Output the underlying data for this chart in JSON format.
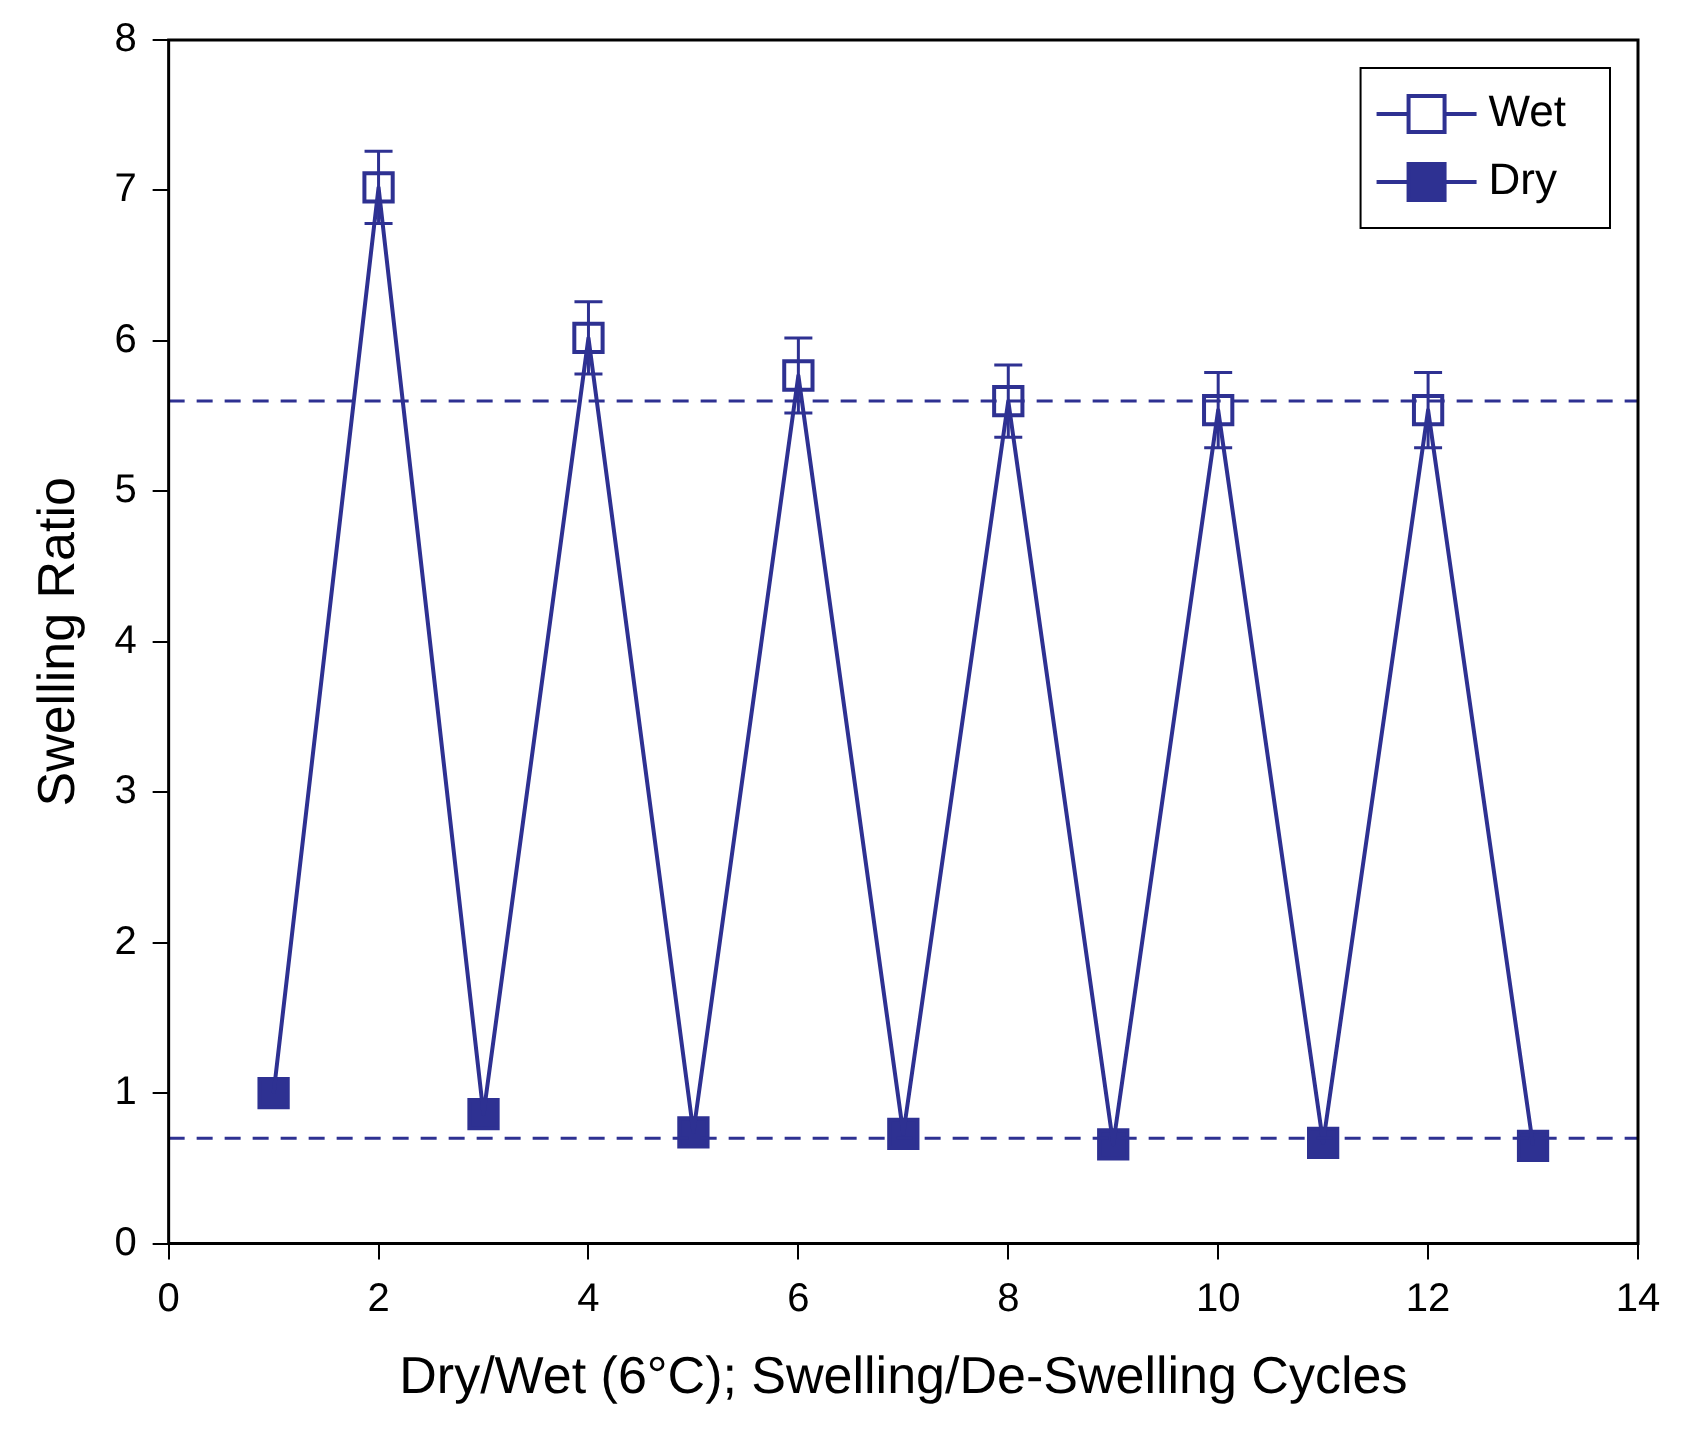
{
  "chart_data": {
    "type": "line",
    "xlabel": "Dry/Wet (6°C); Swelling/De-Swelling Cycles",
    "ylabel": "Swelling Ratio",
    "xlim": [
      0,
      14
    ],
    "xticks": [
      0,
      2,
      4,
      6,
      8,
      10,
      12,
      14
    ],
    "ylim": [
      0,
      8
    ],
    "yticks": [
      0,
      1,
      2,
      3,
      4,
      5,
      6,
      7,
      8
    ],
    "grid": false,
    "legend": "top right",
    "series": [
      {
        "marker": "none",
        "line_style": "solid",
        "color": "#2e3192",
        "x": [
          1,
          2,
          3,
          4,
          5,
          6,
          7,
          8,
          9,
          10,
          11,
          12,
          13
        ],
        "values": [
          1.0,
          7.02,
          0.86,
          6.02,
          0.74,
          5.77,
          0.73,
          5.6,
          0.66,
          5.54,
          0.67,
          5.54,
          0.65
        ]
      },
      {
        "name": "Wet",
        "type": "scatter",
        "marker": "square",
        "color": "#2e3192",
        "x": [
          2,
          4,
          6,
          8,
          10,
          12
        ],
        "values": [
          7.02,
          6.02,
          5.77,
          5.6,
          5.54,
          5.54
        ],
        "errors": [
          0.24,
          0.24,
          0.25,
          0.24,
          0.25,
          0.25
        ]
      },
      {
        "name": "Dry",
        "type": "scatter",
        "marker": "square",
        "color": "#2e3192",
        "x": [
          1,
          3,
          5,
          7,
          9,
          11,
          13
        ],
        "values": [
          1.0,
          0.86,
          0.74,
          0.73,
          0.66,
          0.67,
          0.65
        ]
      }
    ],
    "ref_lines": [
      {
        "axis": "y",
        "value": 5.6,
        "line_style": "dashed",
        "color": "#2e3192"
      },
      {
        "axis": "y",
        "value": 0.7,
        "line_style": "dashed",
        "color": "#2e3192"
      }
    ]
  }
}
